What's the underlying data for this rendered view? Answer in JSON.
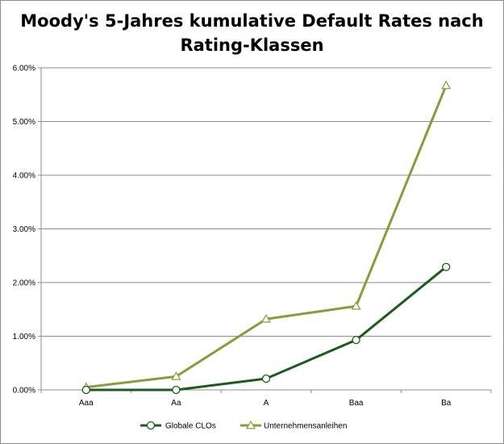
{
  "chart_data": {
    "type": "line",
    "title_lines": [
      "Moody's 5-Jahres kumulative Default Rates nach",
      "Rating-Klassen"
    ],
    "categories": [
      "Aaa",
      "Aa",
      "A",
      "Baa",
      "Ba"
    ],
    "ylim": [
      0,
      0.06
    ],
    "yticks": [
      0,
      0.01,
      0.02,
      0.03,
      0.04,
      0.05,
      0.06
    ],
    "ytick_labels": [
      "0.00%",
      "1.00%",
      "2.00%",
      "3.00%",
      "4.00%",
      "5.00%",
      "6.00%"
    ],
    "grid": true,
    "legend_position": "bottom",
    "series": [
      {
        "name": "Globale CLOs",
        "values": [
          0.0,
          0.0,
          0.0021,
          0.0093,
          0.0229
        ],
        "color": "#1a5c1a",
        "marker": "circle"
      },
      {
        "name": "Unternehmensanleihen",
        "values": [
          0.0005,
          0.0025,
          0.0132,
          0.0156,
          0.0567
        ],
        "color": "#8c9a3a",
        "marker": "triangle"
      }
    ]
  }
}
